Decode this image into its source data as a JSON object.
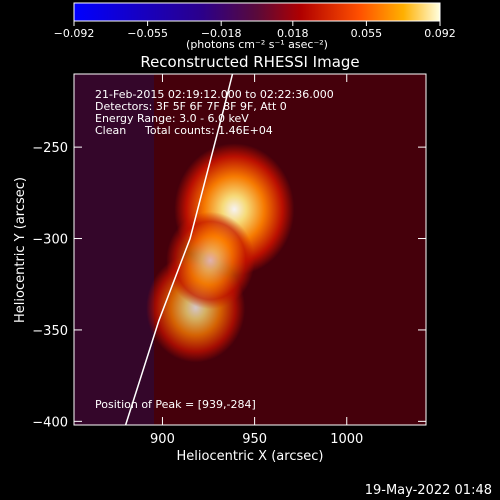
{
  "chart_data": {
    "type": "heatmap",
    "title": "Reconstructed RHESSI Image",
    "xlabel": "Heliocentric X (arcsec)",
    "ylabel": "Heliocentric Y (arcsec)",
    "xlim": [
      852,
      1043
    ],
    "ylim": [
      -402,
      -210
    ],
    "x_ticks": [
      900,
      950,
      1000
    ],
    "x_tick_labels": [
      "900",
      "950",
      "1000"
    ],
    "y_ticks": [
      -250,
      -300,
      -350,
      -400
    ],
    "y_tick_labels": [
      "−250",
      "−300",
      "−350",
      "−400"
    ],
    "colorbar": {
      "range": [
        -0.092,
        0.092
      ],
      "ticks": [
        -0.092,
        -0.055,
        -0.018,
        0.018,
        0.055,
        0.092
      ],
      "tick_labels": [
        "−0.092",
        "−0.055",
        "−0.018",
        "0.018",
        "0.055",
        "0.092"
      ],
      "units": "(photons cm⁻² s⁻¹ asec⁻²)"
    },
    "annotations": {
      "time_range": "21-Feb-2015 02:19:12.000 to 02:22:36.000",
      "detectors": "Detectors: 3F 5F 6F 7F 8F 9F, Att 0",
      "energy": "Energy Range: 3.0 - 6.0 keV",
      "method": "Clean",
      "counts": "Total counts: 1.46E+04",
      "peak": "Position of Peak = [939,-284]"
    },
    "peak": [
      939,
      -284
    ],
    "sources": [
      {
        "x": 939,
        "y": -284,
        "intensity": 1.0
      },
      {
        "x": 918,
        "y": -338,
        "intensity": 0.7
      },
      {
        "x": 926,
        "y": -312,
        "intensity": 0.55
      }
    ],
    "limb_curve": [
      [
        880,
        -402
      ],
      [
        898,
        -345
      ],
      [
        915,
        -300
      ],
      [
        933,
        -230
      ],
      [
        938,
        -210
      ]
    ]
  },
  "footer": {
    "date": "19-May-2022 01:48"
  }
}
